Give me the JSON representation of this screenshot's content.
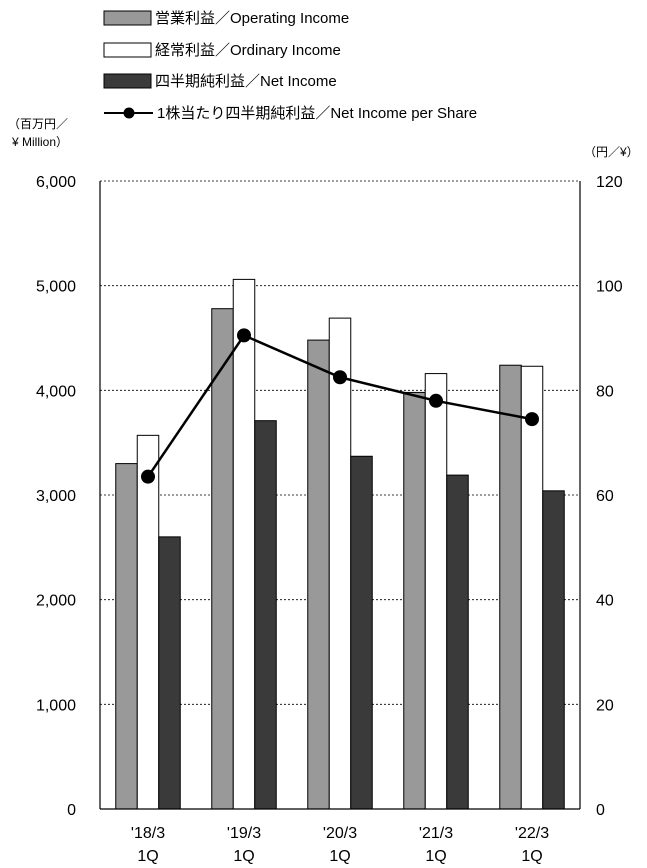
{
  "chart_data": {
    "type": "bar",
    "categories": [
      {
        "line1": "'18/3",
        "line2": "1Q"
      },
      {
        "line1": "'19/3",
        "line2": "1Q"
      },
      {
        "line1": "'20/3",
        "line2": "1Q"
      },
      {
        "line1": "'21/3",
        "line2": "1Q"
      },
      {
        "line1": "'22/3",
        "line2": "1Q"
      }
    ],
    "series": [
      {
        "name": "営業利益／Operating Income",
        "kind": "bar",
        "axis": "left",
        "color": "#999999",
        "values": [
          3300,
          4780,
          4480,
          3980,
          4240
        ]
      },
      {
        "name": "経常利益／Ordinary Income",
        "kind": "bar",
        "axis": "left",
        "color": "#ffffff",
        "values": [
          3570,
          5060,
          4690,
          4160,
          4230
        ]
      },
      {
        "name": "四半期純利益／Net Income",
        "kind": "bar",
        "axis": "left",
        "color": "#3a3a3a",
        "values": [
          2600,
          3710,
          3370,
          3190,
          3040
        ]
      },
      {
        "name": "1株当たり四半期純利益／Net Income per Share",
        "kind": "line",
        "axis": "right",
        "color": "#000000",
        "values": [
          63.5,
          90.5,
          82.5,
          78,
          74.5
        ]
      }
    ],
    "y_left": {
      "unit_line1": "（百万円／",
      "unit_line2": "¥ Million）",
      "lim": [
        0,
        6000
      ],
      "ticks": [
        "0",
        "1,000",
        "2,000",
        "3,000",
        "4,000",
        "5,000",
        "6,000"
      ]
    },
    "y_right": {
      "unit": "（円／¥）",
      "lim": [
        0,
        120
      ],
      "ticks": [
        "0",
        "20",
        "40",
        "60",
        "80",
        "100",
        "120"
      ]
    },
    "grid": "dotted-horizontal",
    "legend_position": "top-left"
  }
}
